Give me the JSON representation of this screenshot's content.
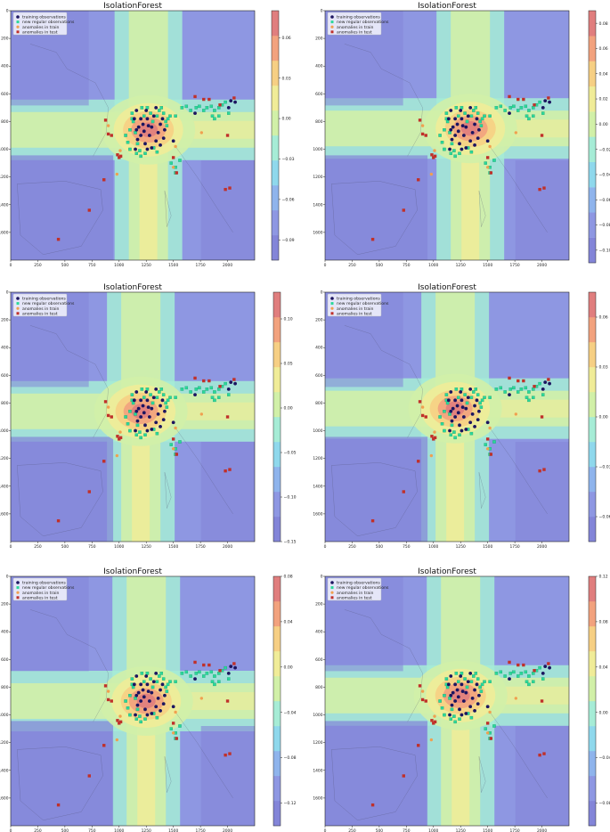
{
  "chart_data": [
    {
      "type": "heatmap",
      "title": "IsolationForest",
      "xticks": [
        0,
        250,
        500,
        750,
        1000,
        1250,
        1500,
        1750,
        2000
      ],
      "yticks": [
        0,
        200,
        400,
        600,
        800,
        1000,
        1200,
        1400,
        1600
      ],
      "xlim": [
        0,
        2250
      ],
      "ylim": [
        1800,
        0
      ],
      "colorbar": {
        "ticks": [
          0.06,
          0.03,
          0.0,
          -0.03,
          -0.06,
          -0.09
        ],
        "labels": [
          "0.06",
          "0.03",
          "0.00",
          "−0.03",
          "−0.06",
          "−0.09"
        ],
        "range": [
          -0.105,
          0.08
        ]
      },
      "anomaly_center": [
        1270,
        860
      ],
      "legend": [
        "training observations",
        "new regular observations",
        "anomalies in train",
        "anomalies in test"
      ],
      "legend_position": "top-left"
    },
    {
      "type": "heatmap",
      "title": "IsolationForest",
      "xticks": [
        0,
        250,
        500,
        750,
        1000,
        1250,
        1500,
        1750,
        2000
      ],
      "yticks": [
        0,
        200,
        400,
        600,
        800,
        1000,
        1200,
        1400,
        1600
      ],
      "xlim": [
        0,
        2250
      ],
      "ylim": [
        1800,
        0
      ],
      "colorbar": {
        "ticks": [
          0.08,
          0.06,
          0.04,
          0.02,
          0.0,
          -0.02,
          -0.04,
          -0.06,
          -0.08,
          -0.1
        ],
        "labels": [
          "0.08",
          "0.06",
          "0.04",
          "0.02",
          "0.00",
          "−0.02",
          "−0.04",
          "−0.06",
          "−0.08",
          "−0.10"
        ],
        "range": [
          -0.11,
          0.09
        ]
      },
      "anomaly_center": [
        1340,
        850
      ],
      "legend": [
        "training observations",
        "new regular observations",
        "anomalies in train",
        "anomalies in test"
      ],
      "legend_position": "top-left"
    },
    {
      "type": "heatmap",
      "title": "IsolationForest",
      "xticks": [
        0,
        250,
        500,
        750,
        1000,
        1250,
        1500,
        1750,
        2000
      ],
      "yticks": [
        0,
        200,
        400,
        600,
        800,
        1000,
        1200,
        1400,
        1600
      ],
      "xlim": [
        0,
        2250
      ],
      "ylim": [
        1800,
        0
      ],
      "colorbar": {
        "ticks": [
          0.1,
          0.05,
          0.0,
          -0.05,
          -0.1,
          -0.15
        ],
        "labels": [
          "0.10",
          "0.05",
          "0.00",
          "−0.05",
          "−0.10",
          "−0.15"
        ],
        "range": [
          -0.15,
          0.13
        ]
      },
      "anomaly_center": [
        1200,
        860
      ],
      "legend": [
        "training observations",
        "new regular observations",
        "anomalies in train",
        "anomalies in test"
      ],
      "legend_position": "top-left"
    },
    {
      "type": "heatmap",
      "title": "IsolationForest",
      "xticks": [
        0,
        250,
        500,
        750,
        1000,
        1250,
        1500,
        1750,
        2000
      ],
      "yticks": [
        0,
        200,
        400,
        600,
        800,
        1000,
        1200,
        1400,
        1600
      ],
      "xlim": [
        0,
        2250
      ],
      "ylim": [
        1800,
        0
      ],
      "colorbar": {
        "ticks": [
          0.06,
          0.03,
          0.0,
          -0.03,
          -0.06
        ],
        "labels": [
          "0.06",
          "0.03",
          "0.00",
          "−0.03",
          "−0.06"
        ],
        "range": [
          -0.075,
          0.075
        ]
      },
      "anomaly_center": [
        1200,
        840
      ],
      "legend": [
        "training observations",
        "new regular observations",
        "anomalies in train",
        "anomalies in test"
      ],
      "legend_position": "top-left"
    },
    {
      "type": "heatmap",
      "title": "IsolationForest",
      "xticks": [
        0,
        250,
        500,
        750,
        1000,
        1250,
        1500,
        1750,
        2000
      ],
      "yticks": [
        0,
        200,
        400,
        600,
        800,
        1000,
        1200,
        1400,
        1600
      ],
      "xlim": [
        0,
        2250
      ],
      "ylim": [
        1800,
        0
      ],
      "colorbar": {
        "ticks": [
          0.08,
          0.04,
          0.0,
          -0.04,
          -0.08,
          -0.12
        ],
        "labels": [
          "0.08",
          "0.04",
          "0.00",
          "−0.04",
          "−0.08",
          "−0.12"
        ],
        "range": [
          -0.14,
          0.08
        ]
      },
      "anomaly_center": [
        1250,
        900
      ],
      "legend": [
        "training observations",
        "new regular observations",
        "anomalies in train",
        "anomalies in test"
      ],
      "legend_position": "top-left"
    },
    {
      "type": "heatmap",
      "title": "IsolationForest",
      "xticks": [
        0,
        250,
        500,
        750,
        1000,
        1250,
        1500,
        1750,
        2000
      ],
      "yticks": [
        0,
        200,
        400,
        600,
        800,
        1000,
        1200,
        1400,
        1600
      ],
      "xlim": [
        0,
        2250
      ],
      "ylim": [
        1800,
        0
      ],
      "colorbar": {
        "ticks": [
          0.12,
          0.08,
          0.04,
          0.0,
          -0.04,
          -0.08
        ],
        "labels": [
          "0.12",
          "0.08",
          "0.04",
          "0.00",
          "−0.04",
          "−0.08"
        ],
        "range": [
          -0.1,
          0.12
        ]
      },
      "anomaly_center": [
        1250,
        860
      ],
      "legend": [
        "training observations",
        "new regular observations",
        "anomalies in train",
        "anomalies in test"
      ],
      "legend_position": "top-left"
    }
  ],
  "scatter": {
    "training_observations": [
      [
        1140,
        780
      ],
      [
        1160,
        720
      ],
      [
        1180,
        840
      ],
      [
        1200,
        900
      ],
      [
        1220,
        820
      ],
      [
        1240,
        960
      ],
      [
        1260,
        780
      ],
      [
        1280,
        900
      ],
      [
        1300,
        840
      ],
      [
        1320,
        760
      ],
      [
        1340,
        940
      ],
      [
        1360,
        880
      ],
      [
        1380,
        820
      ],
      [
        1400,
        780
      ],
      [
        1230,
        870
      ],
      [
        1170,
        930
      ],
      [
        1380,
        970
      ],
      [
        1300,
        990
      ],
      [
        1420,
        860
      ],
      [
        1160,
        860
      ],
      [
        1250,
        720
      ],
      [
        1340,
        700
      ],
      [
        1200,
        780
      ],
      [
        1410,
        920
      ],
      [
        1270,
        830
      ],
      [
        2030,
        650
      ],
      [
        2010,
        700
      ],
      [
        2070,
        660
      ],
      [
        1700,
        740
      ],
      [
        1150,
        1000
      ],
      [
        1500,
        940
      ],
      [
        1260,
        1000
      ]
    ],
    "new_regular_observations": [
      [
        1120,
        740
      ],
      [
        1130,
        800
      ],
      [
        1150,
        880
      ],
      [
        1170,
        960
      ],
      [
        1190,
        1010
      ],
      [
        1210,
        700
      ],
      [
        1230,
        760
      ],
      [
        1260,
        700
      ],
      [
        1290,
        740
      ],
      [
        1310,
        800
      ],
      [
        1350,
        760
      ],
      [
        1370,
        720
      ],
      [
        1390,
        700
      ],
      [
        1410,
        740
      ],
      [
        1430,
        800
      ],
      [
        1450,
        780
      ],
      [
        1470,
        760
      ],
      [
        1520,
        760
      ],
      [
        1580,
        700
      ],
      [
        1620,
        690
      ],
      [
        1660,
        720
      ],
      [
        1710,
        700
      ],
      [
        1740,
        690
      ],
      [
        1780,
        720
      ],
      [
        1810,
        700
      ],
      [
        1850,
        690
      ],
      [
        1880,
        720
      ],
      [
        1920,
        700
      ],
      [
        1950,
        680
      ],
      [
        1980,
        660
      ],
      [
        2010,
        740
      ],
      [
        1920,
        760
      ],
      [
        1880,
        780
      ],
      [
        1860,
        760
      ],
      [
        1060,
        900
      ],
      [
        1080,
        950
      ],
      [
        1100,
        1000
      ],
      [
        1160,
        1030
      ],
      [
        1120,
        780
      ],
      [
        1200,
        1050
      ],
      [
        1350,
        1020
      ],
      [
        1560,
        1080
      ],
      [
        1520,
        1130
      ],
      [
        1520,
        1170
      ],
      [
        1480,
        1100
      ],
      [
        1100,
        860
      ],
      [
        1240,
        1030
      ],
      [
        1320,
        990
      ],
      [
        1440,
        830
      ]
    ],
    "anomalies_in_train": [
      [
        1520,
        980
      ],
      [
        1500,
        1130
      ],
      [
        980,
        1180
      ],
      [
        1760,
        880
      ],
      [
        900,
        830
      ],
      [
        1010,
        1010
      ]
    ],
    "anomalies_in_test": [
      [
        440,
        1650
      ],
      [
        725,
        1440
      ],
      [
        860,
        1220
      ],
      [
        875,
        790
      ],
      [
        900,
        890
      ],
      [
        930,
        900
      ],
      [
        985,
        1040
      ],
      [
        1000,
        1060
      ],
      [
        1015,
        1050
      ],
      [
        1500,
        1060
      ],
      [
        1530,
        1170
      ],
      [
        1980,
        1290
      ],
      [
        2020,
        1280
      ],
      [
        1700,
        620
      ],
      [
        1780,
        640
      ],
      [
        1830,
        640
      ],
      [
        1930,
        680
      ],
      [
        2060,
        630
      ],
      [
        2000,
        900
      ]
    ]
  }
}
